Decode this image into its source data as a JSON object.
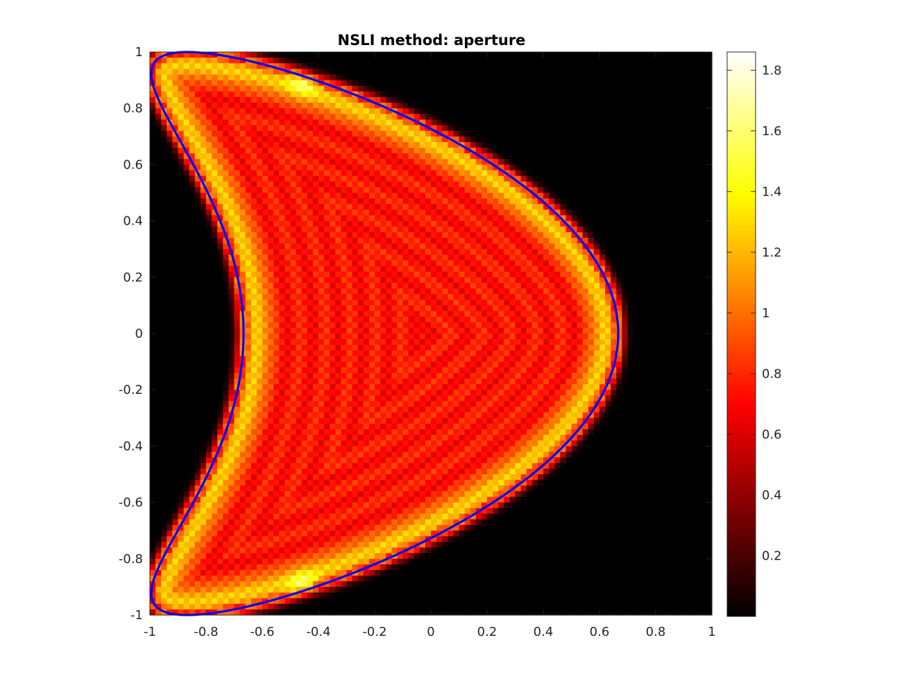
{
  "chart_data": {
    "type": "heatmap",
    "title": "NSLI method: aperture",
    "xlabel": "",
    "ylabel": "",
    "xlim": [
      -1,
      1
    ],
    "ylim": [
      -1,
      1
    ],
    "xticks": [
      -1,
      -0.8,
      -0.6,
      -0.4,
      -0.2,
      0,
      0.2,
      0.4,
      0.6,
      0.8,
      1
    ],
    "yticks": [
      -1,
      -0.8,
      -0.6,
      -0.4,
      -0.2,
      0,
      0.2,
      0.4,
      0.6,
      0.8,
      1
    ],
    "xtick_labels": [
      "-1",
      "-0.8",
      "-0.6",
      "-0.4",
      "-0.2",
      "0",
      "0.2",
      "0.4",
      "0.6",
      "0.8",
      "1"
    ],
    "ytick_labels": [
      "-1",
      "-0.8",
      "-0.6",
      "-0.4",
      "-0.2",
      "0",
      "0.2",
      "0.4",
      "0.6",
      "0.8",
      "1"
    ],
    "grid": false,
    "colormap": "hot",
    "grid_resolution": 100,
    "colorbar": {
      "range": [
        0,
        1.86
      ],
      "ticks": [
        0.2,
        0.4,
        0.6,
        0.8,
        1,
        1.2,
        1.4,
        1.6,
        1.8
      ],
      "tick_labels": [
        "0.2",
        "0.4",
        "0.6",
        "0.8",
        "1",
        "1.2",
        "1.4",
        "1.6",
        "1.8"
      ],
      "placement": "right"
    },
    "overlay_curve": {
      "shape": "kite",
      "parametrization": "x = cos(t) + 0.65 cos(2t) - 0.65, y = 1.5 sin(t), scaled by 1/1.5",
      "color": "#0000ff"
    }
  }
}
